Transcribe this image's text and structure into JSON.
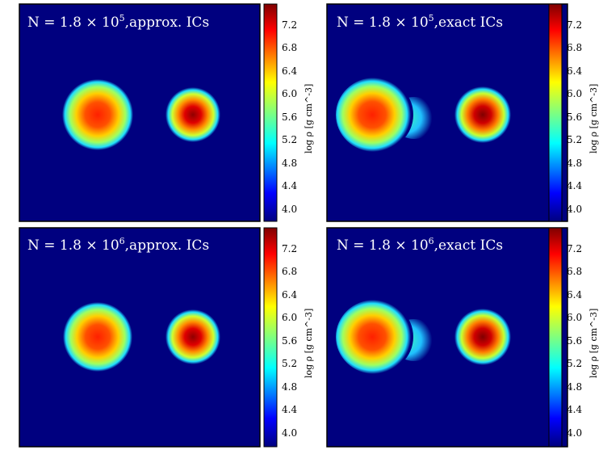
{
  "chart_data": [
    {
      "type": "heatmap",
      "title": "N = 1.8 × 10^5, approx. ICs",
      "title_parts": {
        "prefix": "N = 1.8 × 10",
        "exponent": "5",
        "suffix": ",approx. ICs"
      },
      "colorbar": {
        "label": "log ρ [g cm^-3]",
        "ticks": [
          "7.2",
          "6.8",
          "6.4",
          "6.0",
          "5.6",
          "5.2",
          "4.8",
          "4.4",
          "4.0"
        ],
        "range": [
          3.8,
          7.45
        ],
        "colormap": "jet"
      },
      "blobs": [
        {
          "name": "left-star",
          "peak_log_rho": 7.0,
          "tail": false
        },
        {
          "name": "right-star",
          "peak_log_rho": 7.35,
          "tail": false
        }
      ]
    },
    {
      "type": "heatmap",
      "title": "N = 1.8 × 10^5, exact ICs",
      "title_parts": {
        "prefix": "N = 1.8 × 10",
        "exponent": "5",
        "suffix": ",exact ICs"
      },
      "colorbar": {
        "label": "log ρ [g cm^-3]",
        "ticks": [
          "7.2",
          "6.8",
          "6.4",
          "6.0",
          "5.6",
          "5.2",
          "4.8",
          "4.4",
          "4.0"
        ],
        "range": [
          3.8,
          7.45
        ],
        "colormap": "jet"
      },
      "blobs": [
        {
          "name": "left-star",
          "peak_log_rho": 7.0,
          "tail": true
        },
        {
          "name": "right-star",
          "peak_log_rho": 7.4,
          "tail": false
        }
      ]
    },
    {
      "type": "heatmap",
      "title": "N = 1.8 × 10^6, approx. ICs",
      "title_parts": {
        "prefix": "N = 1.8 × 10",
        "exponent": "6",
        "suffix": ",approx. ICs"
      },
      "colorbar": {
        "label": "log ρ [g cm^-3]",
        "ticks": [
          "7.2",
          "6.8",
          "6.4",
          "6.0",
          "5.6",
          "5.2",
          "4.8",
          "4.4",
          "4.0"
        ],
        "range": [
          3.8,
          7.45
        ],
        "colormap": "jet"
      },
      "blobs": [
        {
          "name": "left-star",
          "peak_log_rho": 7.0,
          "tail": false
        },
        {
          "name": "right-star",
          "peak_log_rho": 7.35,
          "tail": false
        }
      ]
    },
    {
      "type": "heatmap",
      "title": "N = 1.8 × 10^6, exact ICs",
      "title_parts": {
        "prefix": "N = 1.8 × 10",
        "exponent": "6",
        "suffix": ",exact ICs"
      },
      "colorbar": {
        "label": "log ρ [g cm^-3]",
        "ticks": [
          "7.2",
          "6.8",
          "6.4",
          "6.0",
          "5.6",
          "5.2",
          "4.8",
          "4.4",
          "4.0"
        ],
        "range": [
          3.8,
          7.45
        ],
        "colormap": "jet"
      },
      "blobs": [
        {
          "name": "left-star",
          "peak_log_rho": 7.0,
          "tail": true
        },
        {
          "name": "right-star",
          "peak_log_rho": 7.4,
          "tail": false
        }
      ]
    }
  ],
  "colors": {
    "background": "#00007f",
    "frame": "#000000",
    "title_text": "#ffffff"
  }
}
